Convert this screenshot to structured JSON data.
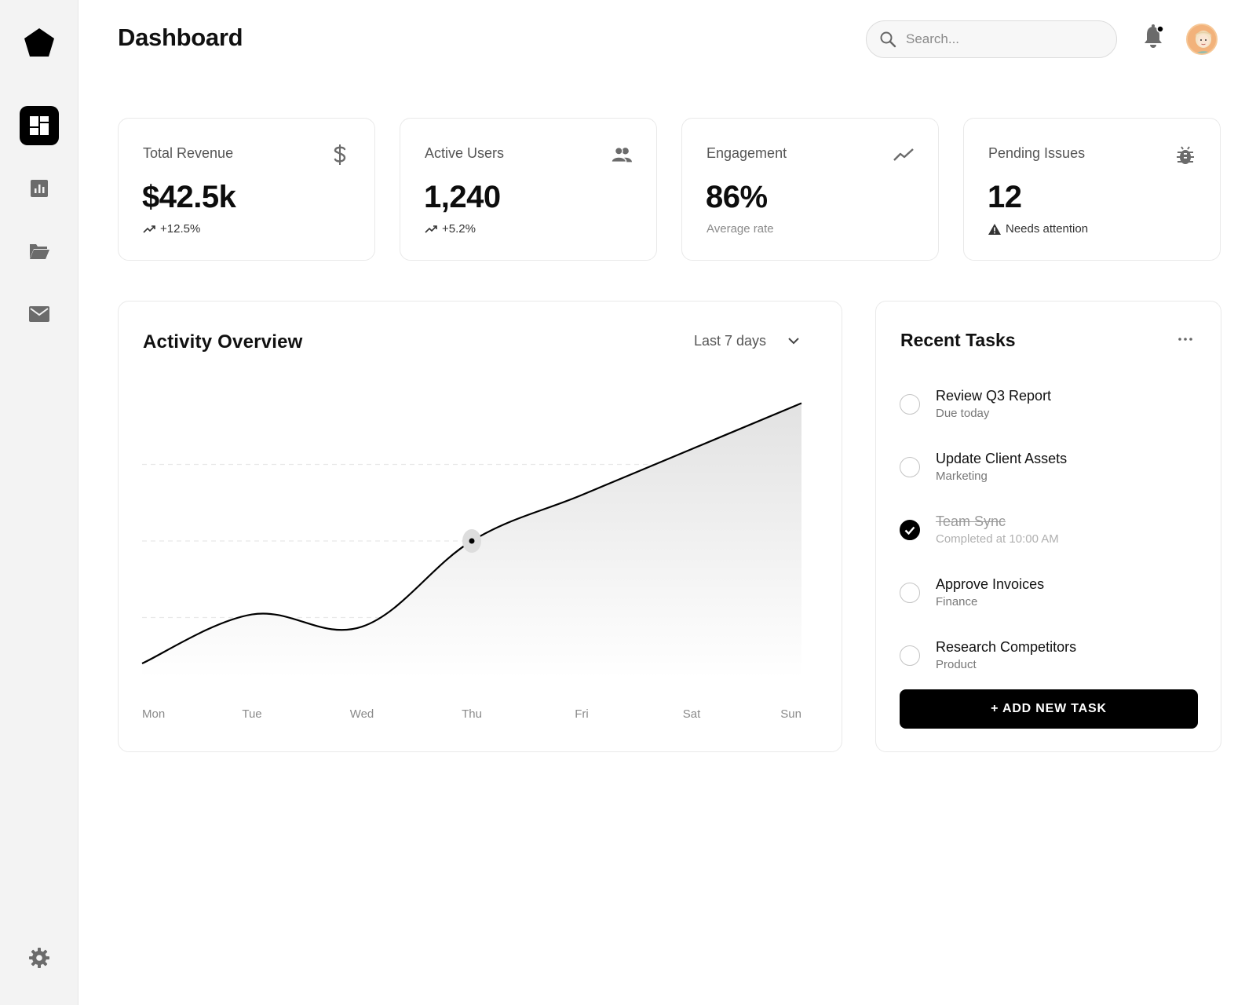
{
  "header": {
    "title": "Dashboard",
    "search_placeholder": "Search...",
    "notification_dot": true
  },
  "sidebar": {
    "items": [
      {
        "name": "dashboard",
        "icon": "dashboard-icon",
        "active": true
      },
      {
        "name": "analytics",
        "icon": "bar-chart-icon",
        "active": false
      },
      {
        "name": "files",
        "icon": "folder-open-icon",
        "active": false
      },
      {
        "name": "mail",
        "icon": "mail-icon",
        "active": false
      }
    ],
    "settings_icon": "gear-icon"
  },
  "stats": [
    {
      "label": "Total Revenue",
      "value": "$42.5k",
      "sub": "+12.5%",
      "icon": "dollar-icon",
      "sub_icon": "trending-up-icon"
    },
    {
      "label": "Active Users",
      "value": "1,240",
      "sub": "+5.2%",
      "icon": "users-icon",
      "sub_icon": "trending-up-icon"
    },
    {
      "label": "Engagement",
      "value": "86%",
      "sub": "Average rate",
      "icon": "trending-line-icon",
      "sub_icon": ""
    },
    {
      "label": "Pending Issues",
      "value": "12",
      "sub": "Needs attention",
      "icon": "bug-icon",
      "sub_icon": "warning-icon"
    }
  ],
  "activity": {
    "title": "Activity Overview",
    "range": "Last 7 days"
  },
  "chart_data": {
    "type": "area",
    "title": "Activity Overview",
    "categories": [
      "Mon",
      "Tue",
      "Wed",
      "Thu",
      "Fri",
      "Sat",
      "Sun"
    ],
    "series": [
      {
        "values": [
          10,
          26,
          22,
          50,
          65,
          80,
          95
        ]
      }
    ],
    "ylim": [
      0,
      100
    ],
    "grid": true,
    "highlight_index": 3
  },
  "tasks": {
    "title": "Recent Tasks",
    "items": [
      {
        "title": "Review Q3 Report",
        "sub": "Due today",
        "done": false
      },
      {
        "title": "Update Client Assets",
        "sub": "Marketing",
        "done": false
      },
      {
        "title": "Team Sync",
        "sub": "Completed at 10:00 AM",
        "done": true
      },
      {
        "title": "Approve Invoices",
        "sub": "Finance",
        "done": false
      },
      {
        "title": "Research Competitors",
        "sub": "Product",
        "done": false
      }
    ],
    "add_label": "+ ADD NEW TASK"
  },
  "colors": {
    "accent": "#000000",
    "sidebar_bg": "#f3f3f3",
    "avatar_bg": "#f2b27b"
  }
}
